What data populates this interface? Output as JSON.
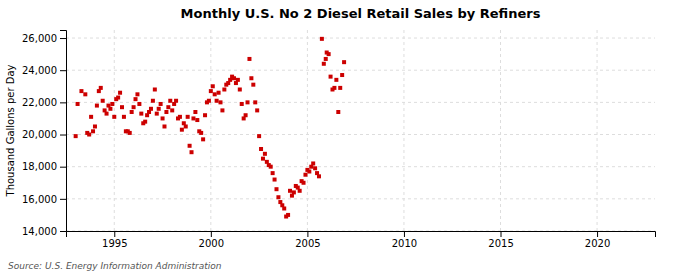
{
  "chart_data": {
    "type": "scatter",
    "title": "Monthly U.S. No 2 Diesel Retail Sales by Refiners",
    "y_label": "Thousand Gallons per Day",
    "annotations": [
      "Source: U.S. Energy Information Administration"
    ],
    "color": "#CC0000",
    "marker": "square",
    "grid": true,
    "xlim": [
      1992.5,
      2023
    ],
    "ylim": [
      14000,
      26500
    ],
    "xticks": [
      1995,
      2000,
      2005,
      2010,
      2015,
      2020
    ],
    "yticks": [
      {
        "value": 14000,
        "label": "14,000"
      },
      {
        "value": 16000,
        "label": "16,000"
      },
      {
        "value": 18000,
        "label": "18,000"
      },
      {
        "value": 20000,
        "label": "20,000"
      },
      {
        "value": 22000,
        "label": "22,000"
      },
      {
        "value": 24000,
        "label": "24,000"
      },
      {
        "value": 26000,
        "label": "26,000"
      }
    ],
    "x": [
      1993.0,
      1993.1,
      1993.3,
      1993.5,
      1993.6,
      1993.7,
      1993.8,
      1993.9,
      1994.0,
      1994.1,
      1994.2,
      1994.3,
      1994.4,
      1994.5,
      1994.6,
      1994.7,
      1994.8,
      1994.9,
      1995.0,
      1995.1,
      1995.2,
      1995.3,
      1995.4,
      1995.5,
      1995.6,
      1995.7,
      1995.8,
      1995.9,
      1996.0,
      1996.1,
      1996.2,
      1996.3,
      1996.4,
      1996.5,
      1996.6,
      1996.7,
      1996.8,
      1996.9,
      1997.0,
      1997.1,
      1997.2,
      1997.3,
      1997.4,
      1997.5,
      1997.6,
      1997.7,
      1997.8,
      1997.9,
      1998.0,
      1998.1,
      1998.2,
      1998.3,
      1998.4,
      1998.5,
      1998.6,
      1998.7,
      1998.8,
      1998.9,
      1999.0,
      1999.1,
      1999.2,
      1999.3,
      1999.4,
      1999.5,
      1999.6,
      1999.7,
      1999.8,
      1999.9,
      2000.0,
      2000.1,
      2000.2,
      2000.3,
      2000.4,
      2000.5,
      2000.6,
      2000.7,
      2000.8,
      2000.9,
      2001.0,
      2001.1,
      2001.2,
      2001.3,
      2001.4,
      2001.5,
      2001.6,
      2001.7,
      2001.8,
      2001.9,
      2002.0,
      2002.1,
      2002.2,
      2002.3,
      2002.4,
      2002.5,
      2002.6,
      2002.7,
      2002.8,
      2002.9,
      2003.0,
      2003.1,
      2003.2,
      2003.3,
      2003.4,
      2003.5,
      2003.6,
      2003.7,
      2003.8,
      2003.9,
      2004.0,
      2004.1,
      2004.2,
      2004.3,
      2004.4,
      2004.5,
      2004.6,
      2004.7,
      2004.8,
      2004.9,
      2005.0,
      2005.1,
      2005.2,
      2005.3,
      2005.4,
      2005.5,
      2005.6,
      2005.75,
      2005.85,
      2005.95,
      2006.0,
      2006.1,
      2006.2,
      2006.3,
      2006.4,
      2006.5,
      2006.6,
      2006.7,
      2006.8,
      2006.9
    ],
    "values": [
      19900,
      21900,
      22700,
      22500,
      20100,
      20000,
      21100,
      20200,
      20500,
      21800,
      22700,
      22900,
      22100,
      21500,
      21300,
      21800,
      21600,
      21900,
      21100,
      22200,
      22300,
      22600,
      21700,
      21100,
      20200,
      20200,
      20100,
      21400,
      21700,
      22200,
      22500,
      21900,
      21300,
      20700,
      20800,
      21200,
      21400,
      21600,
      22100,
      22800,
      21300,
      21600,
      21900,
      21000,
      20500,
      21400,
      21700,
      22100,
      21500,
      21900,
      22100,
      21000,
      21100,
      20300,
      20700,
      20500,
      21100,
      19300,
      18900,
      21000,
      21400,
      20900,
      20200,
      20100,
      19700,
      21200,
      22000,
      22100,
      22700,
      23000,
      22500,
      22100,
      22600,
      22000,
      21500,
      22800,
      23100,
      23200,
      23400,
      23600,
      23500,
      23200,
      23400,
      22800,
      21900,
      21000,
      21200,
      22000,
      24700,
      23500,
      23100,
      22000,
      21500,
      19900,
      19100,
      18500,
      18800,
      18300,
      18100,
      18000,
      17600,
      17200,
      16600,
      16100,
      15800,
      15600,
      15400,
      14900,
      15000,
      16500,
      16200,
      16400,
      16800,
      16700,
      16500,
      17100,
      17000,
      17500,
      17800,
      17700,
      18000,
      18200,
      17900,
      17600,
      17400,
      25950,
      24400,
      24700,
      25100,
      25000,
      23600,
      22800,
      22900,
      23400,
      21400,
      22900,
      23700,
      24500
    ]
  }
}
